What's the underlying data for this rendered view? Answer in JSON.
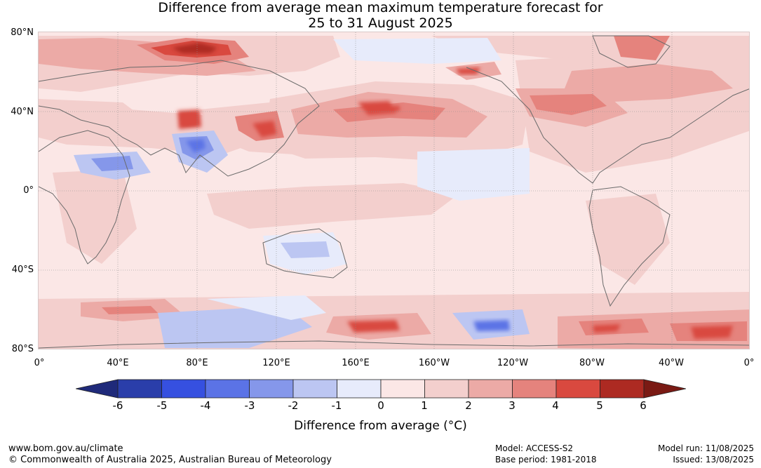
{
  "title": {
    "line1": "Difference from average mean maximum temperature forecast for",
    "line2": "25 to 31 August 2025"
  },
  "map": {
    "projection": "equirectangular",
    "lon_range": [
      0,
      360
    ],
    "lat_range": [
      -80,
      80
    ],
    "lat_labels": [
      "80°N",
      "40°N",
      "0°",
      "40°S",
      "80°S"
    ],
    "lon_labels": [
      "0°",
      "40°E",
      "80°E",
      "120°E",
      "160°E",
      "160°W",
      "120°W",
      "80°W",
      "40°W",
      "0°"
    ],
    "gridlines": true
  },
  "colorbar": {
    "label": "Difference from average (°C)",
    "ticks": [
      "-6",
      "-5",
      "-4",
      "-3",
      "-2",
      "-1",
      "0",
      "1",
      "2",
      "3",
      "4",
      "5",
      "6"
    ],
    "colors": {
      "lt_-6": "#1f2a7a",
      "-6_-5": "#2a3eaa",
      "-5_-4": "#3650e0",
      "-4_-3": "#5b73e6",
      "-3_-2": "#8597ea",
      "-2_-1": "#bcc6f2",
      "-1_0": "#e7ebfb",
      "0_1": "#fbe7e6",
      "1_2": "#f3cfcd",
      "2_3": "#ecaaa6",
      "3_4": "#e5837d",
      "4_5": "#d9493f",
      "5_6": "#ad2a22",
      "gt_6": "#7a1a14"
    }
  },
  "footer": {
    "website": "www.bom.gov.au/climate",
    "copyright": "© Commonwealth of Australia 2025, Australian Bureau of Meteorology",
    "model": "Model: ACCESS-S2",
    "base_period": "Base period: 1981-2018",
    "model_run": "Model run: 11/08/2025",
    "issued": "Issued: 13/08/2025"
  }
}
